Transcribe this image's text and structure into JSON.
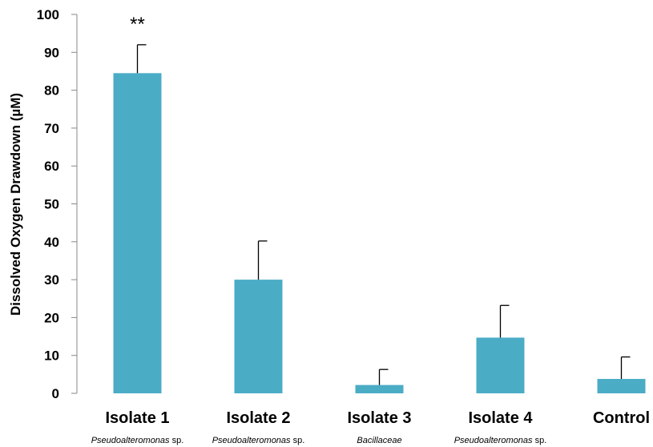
{
  "chart_data": {
    "type": "bar",
    "title": "",
    "xlabel": "",
    "ylabel": "Dissolved Oxygen Drawdown (µM)",
    "ylim": [
      0,
      100
    ],
    "yticks": [
      0,
      10,
      20,
      30,
      40,
      50,
      60,
      70,
      80,
      90,
      100
    ],
    "grid": false,
    "legend": "none",
    "categories": [
      "Isolate 1",
      "Isolate 2",
      "Isolate 3",
      "Isolate 4",
      "Control"
    ],
    "category_sublabels": [
      {
        "italic": "Pseudoalteromonas",
        "rest": " sp."
      },
      {
        "italic": "Pseudoalteromonas",
        "rest": " sp."
      },
      {
        "italic": "Bacillaceae",
        "rest": ""
      },
      {
        "italic": "Pseudoalteromonas",
        "rest": " sp."
      },
      {
        "italic": "",
        "rest": ""
      }
    ],
    "values": [
      84.5,
      30,
      2.2,
      14.7,
      3.8
    ],
    "errors": [
      7.5,
      10.2,
      4.1,
      8.5,
      5.8
    ],
    "annotations": [
      {
        "category": "Isolate 1",
        "text": "**"
      }
    ],
    "bar_color": "#4bacc6",
    "error_color": "#000000"
  }
}
